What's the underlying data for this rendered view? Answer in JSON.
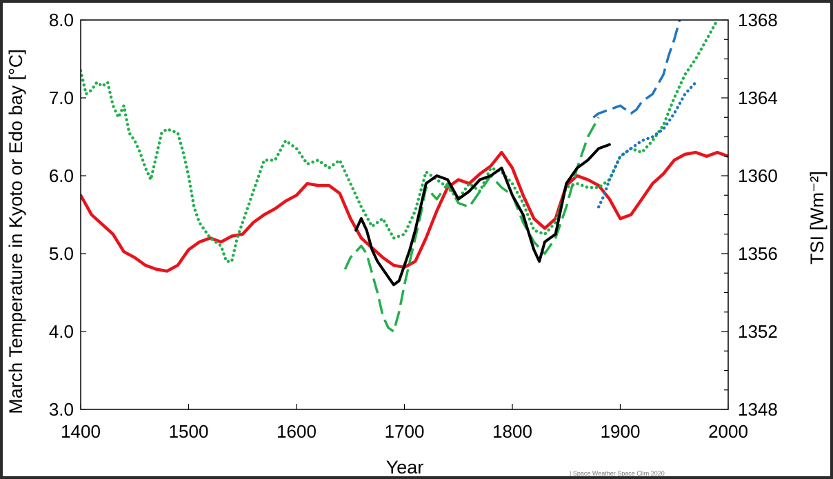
{
  "chart_data": {
    "type": "line",
    "title": "",
    "xlabel": "Year",
    "ylabel_left": "March Temperature in Kyoto or Edo bay [°C]",
    "ylabel_right": "TSI [Wm⁻²]",
    "xlim": [
      1400,
      2000
    ],
    "ylim_left": [
      3.0,
      8.0
    ],
    "ylim_right": [
      1348,
      1368
    ],
    "x_ticks": [
      "1400",
      "1500",
      "1600",
      "1700",
      "1800",
      "1900",
      "2000"
    ],
    "y_ticks_left": [
      "3.0",
      "4.0",
      "5.0",
      "6.0",
      "7.0",
      "8.0"
    ],
    "y_ticks_right": [
      "1348",
      "1352",
      "1356",
      "1360",
      "1364",
      "1368"
    ],
    "grid": false,
    "legend": "none",
    "credit_text": "| Space Weather Space Clim 2020",
    "series": [
      {
        "color": "#e8141b",
        "style": "solid",
        "axis": "right",
        "points": [
          [
            1400,
            1359.0
          ],
          [
            1410,
            1358.0
          ],
          [
            1420,
            1357.5
          ],
          [
            1430,
            1357.0
          ],
          [
            1440,
            1356.1
          ],
          [
            1450,
            1355.8
          ],
          [
            1460,
            1355.4
          ],
          [
            1470,
            1355.2
          ],
          [
            1480,
            1355.1
          ],
          [
            1490,
            1355.4
          ],
          [
            1500,
            1356.2
          ],
          [
            1510,
            1356.6
          ],
          [
            1520,
            1356.8
          ],
          [
            1530,
            1356.6
          ],
          [
            1540,
            1356.9
          ],
          [
            1550,
            1357.0
          ],
          [
            1560,
            1357.6
          ],
          [
            1570,
            1358.0
          ],
          [
            1580,
            1358.3
          ],
          [
            1590,
            1358.7
          ],
          [
            1600,
            1359.0
          ],
          [
            1610,
            1359.6
          ],
          [
            1620,
            1359.5
          ],
          [
            1630,
            1359.5
          ],
          [
            1640,
            1359.1
          ],
          [
            1650,
            1357.8
          ],
          [
            1660,
            1356.8
          ],
          [
            1670,
            1356.3
          ],
          [
            1680,
            1355.8
          ],
          [
            1690,
            1355.4
          ],
          [
            1700,
            1355.3
          ],
          [
            1710,
            1355.6
          ],
          [
            1720,
            1356.8
          ],
          [
            1730,
            1358.2
          ],
          [
            1740,
            1359.4
          ],
          [
            1750,
            1359.8
          ],
          [
            1760,
            1359.6
          ],
          [
            1770,
            1360.1
          ],
          [
            1780,
            1360.5
          ],
          [
            1790,
            1361.2
          ],
          [
            1800,
            1360.4
          ],
          [
            1810,
            1359.0
          ],
          [
            1820,
            1357.8
          ],
          [
            1830,
            1357.3
          ],
          [
            1840,
            1357.8
          ],
          [
            1850,
            1359.5
          ],
          [
            1860,
            1360.0
          ],
          [
            1870,
            1359.8
          ],
          [
            1880,
            1359.5
          ],
          [
            1890,
            1358.8
          ],
          [
            1900,
            1357.8
          ],
          [
            1910,
            1358.0
          ],
          [
            1920,
            1358.8
          ],
          [
            1930,
            1359.6
          ],
          [
            1940,
            1360.1
          ],
          [
            1950,
            1360.8
          ],
          [
            1960,
            1361.1
          ],
          [
            1970,
            1361.2
          ],
          [
            1980,
            1361.0
          ],
          [
            1990,
            1361.2
          ],
          [
            2000,
            1361.0
          ]
        ]
      },
      {
        "color": "#22b04b",
        "style": "dotted",
        "axis": "left",
        "points": [
          [
            1400,
            7.35
          ],
          [
            1405,
            7.05
          ],
          [
            1410,
            7.1
          ],
          [
            1415,
            7.2
          ],
          [
            1420,
            7.15
          ],
          [
            1425,
            7.2
          ],
          [
            1430,
            6.9
          ],
          [
            1435,
            6.75
          ],
          [
            1440,
            6.9
          ],
          [
            1445,
            6.55
          ],
          [
            1450,
            6.45
          ],
          [
            1455,
            6.3
          ],
          [
            1460,
            6.1
          ],
          [
            1465,
            5.95
          ],
          [
            1470,
            6.25
          ],
          [
            1475,
            6.55
          ],
          [
            1480,
            6.6
          ],
          [
            1490,
            6.55
          ],
          [
            1495,
            6.3
          ],
          [
            1500,
            6.0
          ],
          [
            1505,
            5.6
          ],
          [
            1510,
            5.4
          ],
          [
            1520,
            5.2
          ],
          [
            1530,
            5.1
          ],
          [
            1535,
            4.9
          ],
          [
            1540,
            4.9
          ],
          [
            1545,
            5.2
          ],
          [
            1550,
            5.4
          ],
          [
            1560,
            5.8
          ],
          [
            1570,
            6.2
          ],
          [
            1580,
            6.2
          ],
          [
            1590,
            6.45
          ],
          [
            1600,
            6.35
          ],
          [
            1610,
            6.15
          ],
          [
            1620,
            6.2
          ],
          [
            1630,
            6.1
          ],
          [
            1640,
            6.2
          ],
          [
            1650,
            5.9
          ],
          [
            1660,
            5.6
          ],
          [
            1670,
            5.35
          ],
          [
            1680,
            5.45
          ],
          [
            1690,
            5.2
          ],
          [
            1700,
            5.25
          ],
          [
            1710,
            5.55
          ],
          [
            1720,
            6.05
          ],
          [
            1730,
            5.95
          ],
          [
            1740,
            5.85
          ],
          [
            1750,
            5.7
          ],
          [
            1760,
            5.9
          ],
          [
            1770,
            5.8
          ],
          [
            1780,
            6.1
          ],
          [
            1790,
            6.05
          ],
          [
            1800,
            5.9
          ],
          [
            1810,
            5.65
          ],
          [
            1820,
            5.3
          ],
          [
            1830,
            5.25
          ],
          [
            1840,
            5.4
          ],
          [
            1850,
            5.85
          ],
          [
            1860,
            5.9
          ],
          [
            1870,
            5.85
          ],
          [
            1880,
            5.85
          ],
          [
            1890,
            5.95
          ],
          [
            1900,
            6.25
          ],
          [
            1910,
            6.35
          ],
          [
            1920,
            6.3
          ],
          [
            1930,
            6.45
          ],
          [
            1940,
            6.65
          ],
          [
            1950,
            7.0
          ],
          [
            1960,
            7.3
          ],
          [
            1970,
            7.5
          ],
          [
            1980,
            7.75
          ],
          [
            1990,
            8.0
          ]
        ]
      },
      {
        "color": "#22b04b",
        "style": "dashed",
        "axis": "left",
        "points": [
          [
            1645,
            4.8
          ],
          [
            1650,
            4.95
          ],
          [
            1660,
            5.1
          ],
          [
            1665,
            5.0
          ],
          [
            1670,
            4.75
          ],
          [
            1675,
            4.5
          ],
          [
            1680,
            4.2
          ],
          [
            1685,
            4.05
          ],
          [
            1690,
            4.0
          ],
          [
            1695,
            4.25
          ],
          [
            1700,
            4.6
          ],
          [
            1705,
            4.9
          ],
          [
            1710,
            5.2
          ],
          [
            1715,
            5.5
          ],
          [
            1720,
            5.85
          ],
          [
            1730,
            5.7
          ],
          [
            1740,
            5.9
          ],
          [
            1750,
            5.65
          ],
          [
            1760,
            5.6
          ],
          [
            1770,
            5.8
          ],
          [
            1780,
            6.0
          ],
          [
            1790,
            5.85
          ],
          [
            1800,
            5.75
          ],
          [
            1810,
            5.4
          ],
          [
            1820,
            5.15
          ],
          [
            1830,
            5.0
          ],
          [
            1840,
            5.2
          ],
          [
            1850,
            5.6
          ],
          [
            1860,
            6.1
          ],
          [
            1870,
            6.5
          ],
          [
            1880,
            6.75
          ]
        ]
      },
      {
        "color": "#000000",
        "style": "solid",
        "axis": "left",
        "points": [
          [
            1655,
            5.3
          ],
          [
            1660,
            5.45
          ],
          [
            1665,
            5.3
          ],
          [
            1670,
            5.05
          ],
          [
            1675,
            4.9
          ],
          [
            1680,
            4.8
          ],
          [
            1685,
            4.7
          ],
          [
            1690,
            4.6
          ],
          [
            1695,
            4.65
          ],
          [
            1700,
            4.85
          ],
          [
            1705,
            5.05
          ],
          [
            1710,
            5.3
          ],
          [
            1715,
            5.6
          ],
          [
            1720,
            5.9
          ],
          [
            1730,
            6.0
          ],
          [
            1740,
            5.95
          ],
          [
            1750,
            5.7
          ],
          [
            1760,
            5.8
          ],
          [
            1770,
            5.95
          ],
          [
            1780,
            6.0
          ],
          [
            1790,
            6.1
          ],
          [
            1800,
            5.75
          ],
          [
            1810,
            5.5
          ],
          [
            1820,
            5.05
          ],
          [
            1825,
            4.9
          ],
          [
            1830,
            5.15
          ],
          [
            1840,
            5.25
          ],
          [
            1850,
            5.9
          ],
          [
            1860,
            6.1
          ],
          [
            1870,
            6.2
          ],
          [
            1880,
            6.35
          ],
          [
            1890,
            6.4
          ]
        ]
      },
      {
        "color": "#1f76c0",
        "style": "dashed",
        "axis": "left",
        "points": [
          [
            1875,
            6.75
          ],
          [
            1880,
            6.8
          ],
          [
            1890,
            6.85
          ],
          [
            1900,
            6.9
          ],
          [
            1910,
            6.8
          ],
          [
            1915,
            6.85
          ],
          [
            1920,
            6.95
          ],
          [
            1930,
            7.05
          ],
          [
            1940,
            7.3
          ],
          [
            1945,
            7.55
          ],
          [
            1950,
            7.75
          ],
          [
            1955,
            8.0
          ]
        ]
      },
      {
        "color": "#1f76c0",
        "style": "dotted",
        "axis": "left",
        "points": [
          [
            1880,
            5.6
          ],
          [
            1885,
            5.75
          ],
          [
            1890,
            5.95
          ],
          [
            1895,
            6.1
          ],
          [
            1900,
            6.25
          ],
          [
            1910,
            6.35
          ],
          [
            1920,
            6.45
          ],
          [
            1930,
            6.5
          ],
          [
            1940,
            6.6
          ],
          [
            1950,
            6.8
          ],
          [
            1960,
            7.05
          ],
          [
            1970,
            7.2
          ]
        ]
      }
    ]
  }
}
